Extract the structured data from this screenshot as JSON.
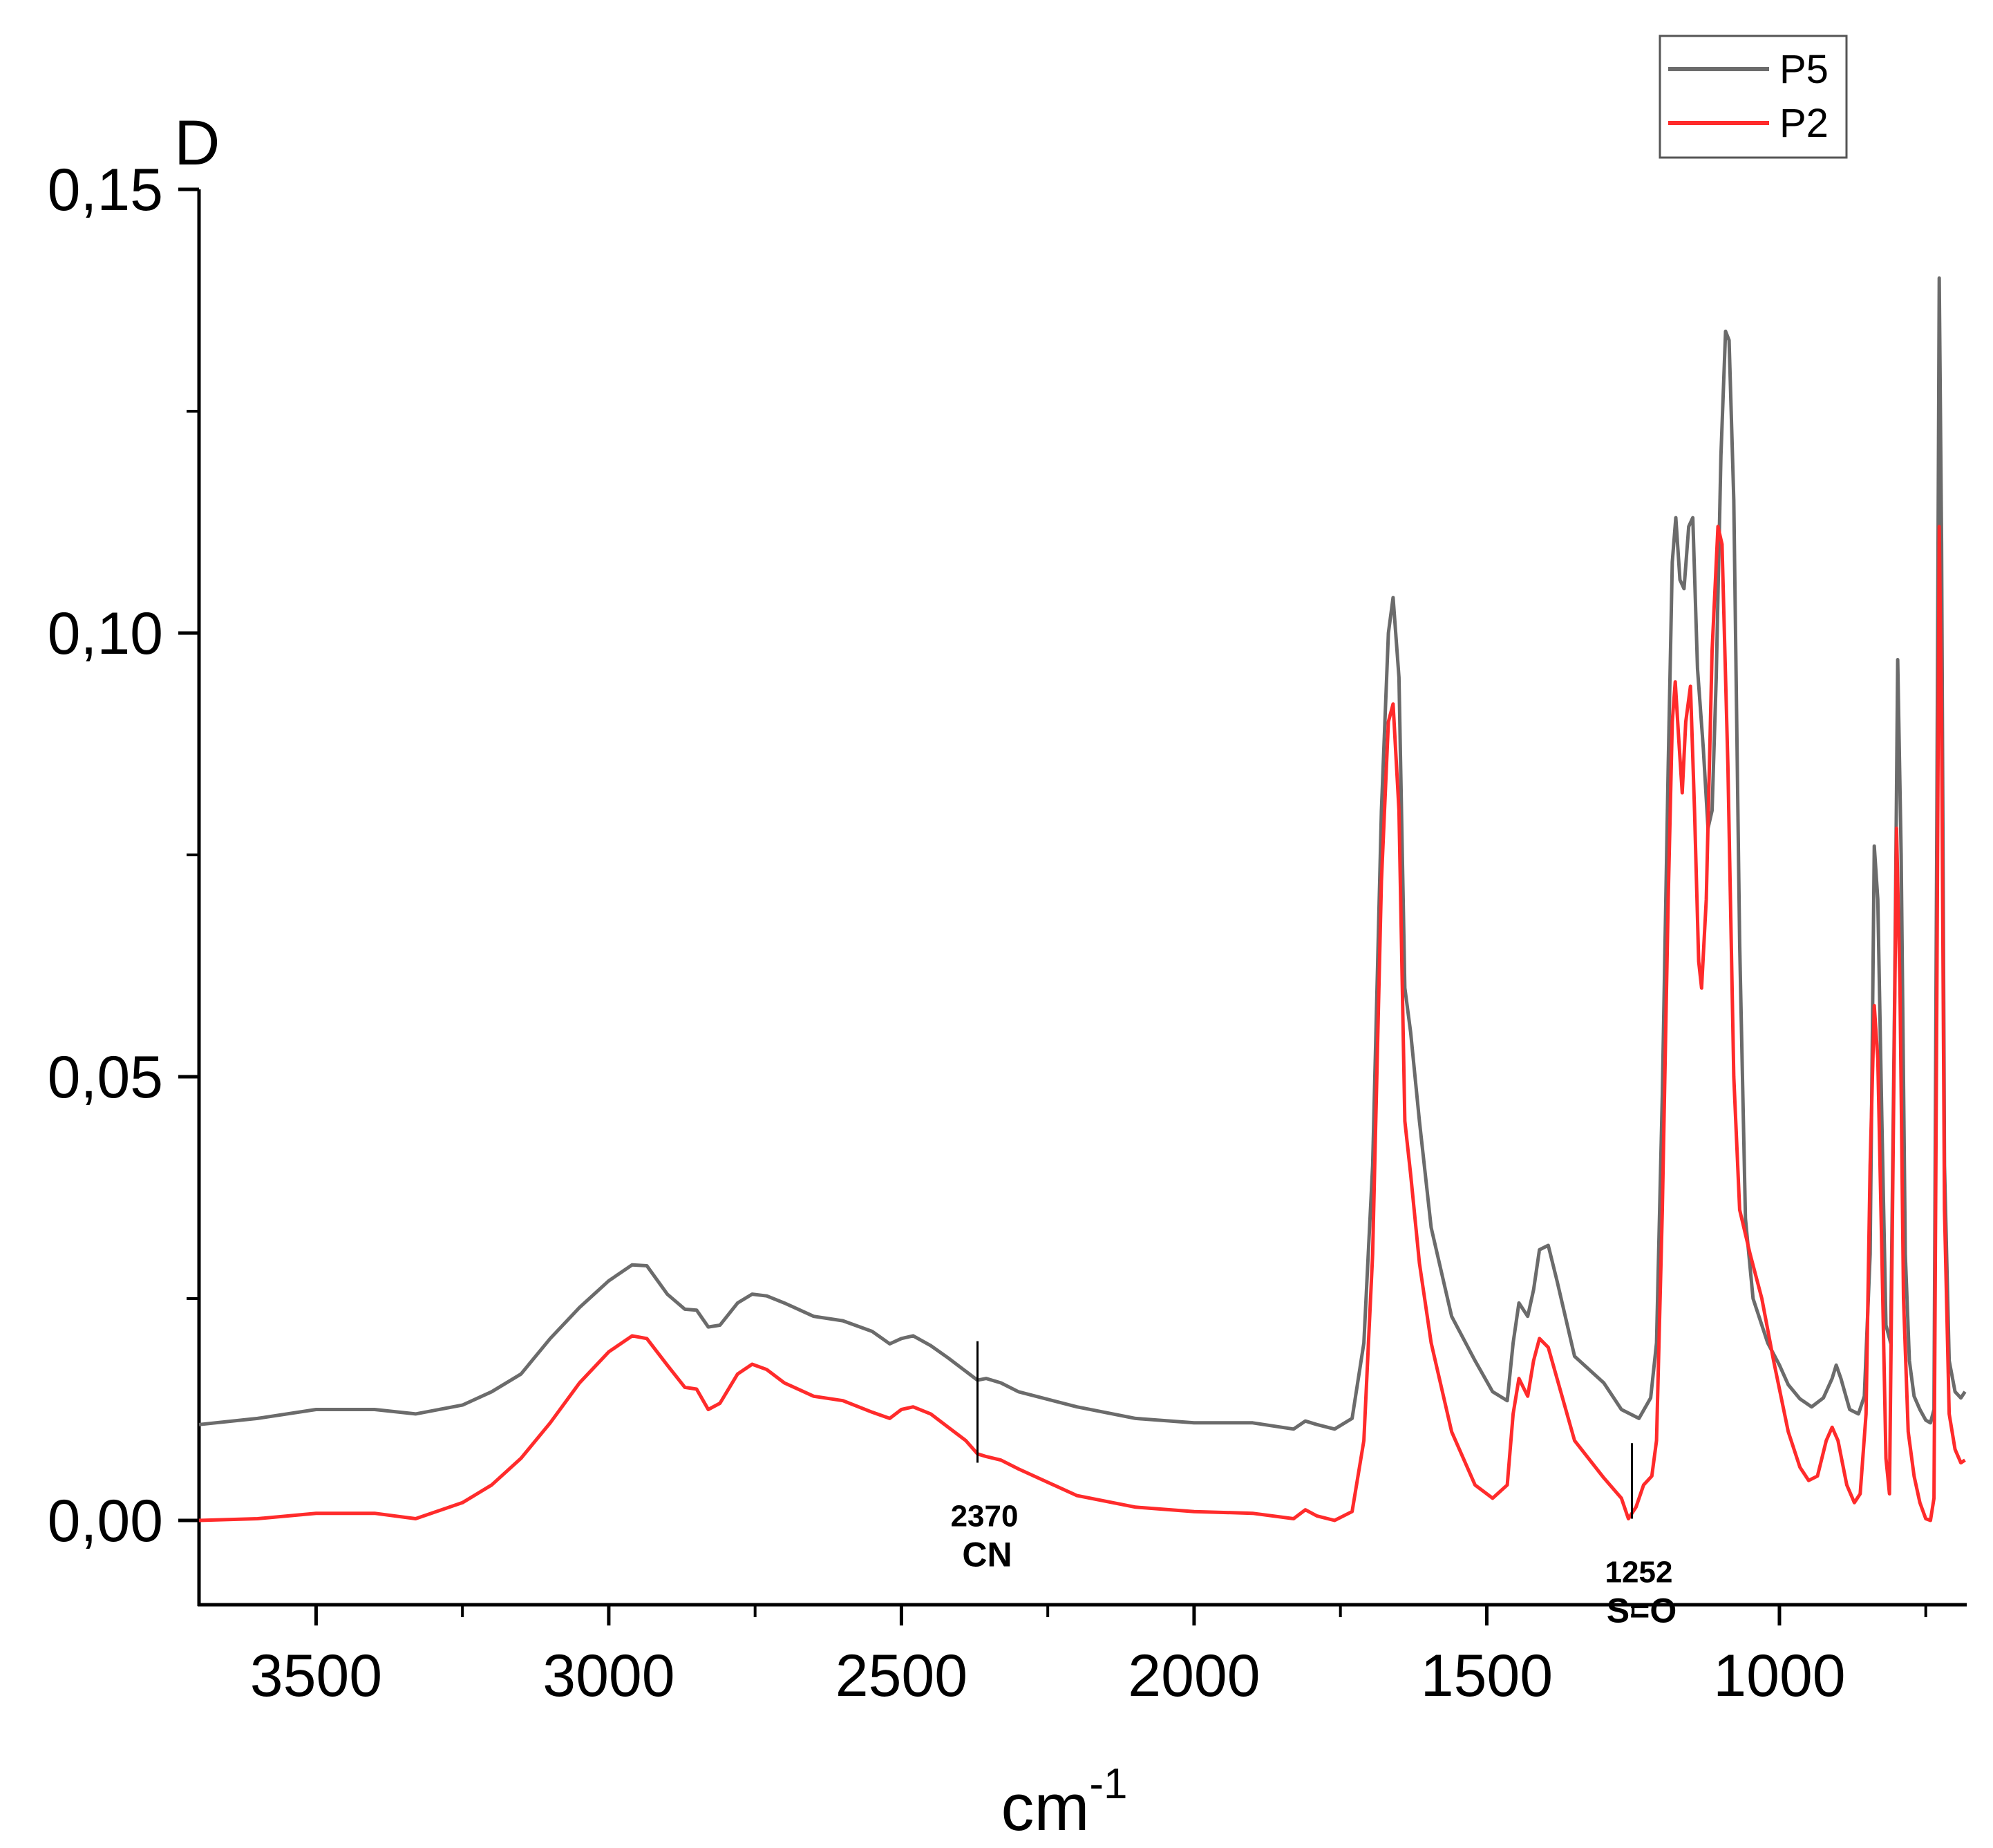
{
  "chart_data": {
    "type": "line",
    "panel_label": "D",
    "xlabel": "cm",
    "xlabel_sup": "-1",
    "ylabel": "",
    "x_reversed": true,
    "xlim": [
      3700,
      680
    ],
    "ylim": [
      -0.0095,
      0.15
    ],
    "x_ticks": [
      {
        "v": 3500,
        "label": "3500"
      },
      {
        "v": 3000,
        "label": "3000"
      },
      {
        "v": 2500,
        "label": "2500"
      },
      {
        "v": 2000,
        "label": "2000"
      },
      {
        "v": 1500,
        "label": "1500"
      },
      {
        "v": 1000,
        "label": "1000"
      }
    ],
    "x_minor_ticks": [
      3250,
      2750,
      2250,
      1750,
      1250,
      750
    ],
    "y_ticks": [
      {
        "v": 0.0,
        "label": "0,00"
      },
      {
        "v": 0.05,
        "label": "0,05"
      },
      {
        "v": 0.1,
        "label": "0,10"
      },
      {
        "v": 0.15,
        "label": "0,15"
      }
    ],
    "y_minor_ticks": [
      0.025,
      0.075,
      0.125
    ],
    "grid": false,
    "legend": {
      "position": "top-right"
    },
    "series": [
      {
        "name": "P5",
        "color": "#6b6b6b",
        "points": [
          [
            3700,
            0.0108
          ],
          [
            3600,
            0.0115
          ],
          [
            3500,
            0.0125
          ],
          [
            3400,
            0.0125
          ],
          [
            3330,
            0.012
          ],
          [
            3250,
            0.013
          ],
          [
            3200,
            0.0145
          ],
          [
            3150,
            0.0165
          ],
          [
            3100,
            0.0205
          ],
          [
            3050,
            0.024
          ],
          [
            3000,
            0.027
          ],
          [
            2960,
            0.0288
          ],
          [
            2935,
            0.0287
          ],
          [
            2900,
            0.0255
          ],
          [
            2870,
            0.0238
          ],
          [
            2850,
            0.0237
          ],
          [
            2830,
            0.0218
          ],
          [
            2810,
            0.022
          ],
          [
            2780,
            0.0245
          ],
          [
            2755,
            0.0255
          ],
          [
            2730,
            0.0253
          ],
          [
            2700,
            0.0245
          ],
          [
            2650,
            0.023
          ],
          [
            2600,
            0.0225
          ],
          [
            2550,
            0.0213
          ],
          [
            2520,
            0.0199
          ],
          [
            2500,
            0.0205
          ],
          [
            2480,
            0.0208
          ],
          [
            2450,
            0.0197
          ],
          [
            2420,
            0.0183
          ],
          [
            2390,
            0.0168
          ],
          [
            2370,
            0.0158
          ],
          [
            2355,
            0.016
          ],
          [
            2330,
            0.0155
          ],
          [
            2300,
            0.0145
          ],
          [
            2200,
            0.0128
          ],
          [
            2100,
            0.0115
          ],
          [
            2000,
            0.011
          ],
          [
            1900,
            0.011
          ],
          [
            1830,
            0.0103
          ],
          [
            1810,
            0.0112
          ],
          [
            1790,
            0.0108
          ],
          [
            1760,
            0.0103
          ],
          [
            1730,
            0.0115
          ],
          [
            1710,
            0.02
          ],
          [
            1695,
            0.04
          ],
          [
            1680,
            0.08
          ],
          [
            1668,
            0.1
          ],
          [
            1660,
            0.104
          ],
          [
            1650,
            0.095
          ],
          [
            1640,
            0.06
          ],
          [
            1630,
            0.055
          ],
          [
            1615,
            0.045
          ],
          [
            1595,
            0.033
          ],
          [
            1560,
            0.023
          ],
          [
            1520,
            0.018
          ],
          [
            1490,
            0.0145
          ],
          [
            1465,
            0.0135
          ],
          [
            1455,
            0.02
          ],
          [
            1445,
            0.0245
          ],
          [
            1430,
            0.023
          ],
          [
            1420,
            0.026
          ],
          [
            1410,
            0.0305
          ],
          [
            1395,
            0.031
          ],
          [
            1380,
            0.027
          ],
          [
            1350,
            0.0185
          ],
          [
            1300,
            0.0155
          ],
          [
            1270,
            0.0125
          ],
          [
            1240,
            0.0115
          ],
          [
            1220,
            0.0138
          ],
          [
            1210,
            0.02
          ],
          [
            1200,
            0.048
          ],
          [
            1190,
            0.085
          ],
          [
            1183,
            0.108
          ],
          [
            1177,
            0.113
          ],
          [
            1170,
            0.106
          ],
          [
            1163,
            0.105
          ],
          [
            1155,
            0.112
          ],
          [
            1148,
            0.113
          ],
          [
            1140,
            0.096
          ],
          [
            1130,
            0.087
          ],
          [
            1122,
            0.078
          ],
          [
            1115,
            0.08
          ],
          [
            1108,
            0.095
          ],
          [
            1100,
            0.12
          ],
          [
            1092,
            0.134
          ],
          [
            1086,
            0.133
          ],
          [
            1078,
            0.115
          ],
          [
            1068,
            0.065
          ],
          [
            1058,
            0.034
          ],
          [
            1045,
            0.025
          ],
          [
            1020,
            0.02
          ],
          [
            1000,
            0.0175
          ],
          [
            985,
            0.0153
          ],
          [
            965,
            0.0137
          ],
          [
            945,
            0.0128
          ],
          [
            925,
            0.0138
          ],
          [
            910,
            0.016
          ],
          [
            903,
            0.0175
          ],
          [
            895,
            0.016
          ],
          [
            880,
            0.0125
          ],
          [
            865,
            0.012
          ],
          [
            855,
            0.014
          ],
          [
            845,
            0.03
          ],
          [
            838,
            0.076
          ],
          [
            832,
            0.07
          ],
          [
            825,
            0.045
          ],
          [
            818,
            0.022
          ],
          [
            810,
            0.02
          ],
          [
            803,
            0.06
          ],
          [
            798,
            0.097
          ],
          [
            792,
            0.075
          ],
          [
            785,
            0.03
          ],
          [
            778,
            0.018
          ],
          [
            770,
            0.014
          ],
          [
            760,
            0.0125
          ],
          [
            750,
            0.0113
          ],
          [
            742,
            0.011
          ],
          [
            736,
            0.0125
          ],
          [
            731,
            0.08
          ],
          [
            727,
            0.14
          ],
          [
            723,
            0.11
          ],
          [
            718,
            0.04
          ],
          [
            710,
            0.018
          ],
          [
            700,
            0.0145
          ],
          [
            690,
            0.0138
          ],
          [
            683,
            0.0145
          ]
        ]
      },
      {
        "name": "P2",
        "color": "#ff2b2b",
        "points": [
          [
            3700,
            0.0
          ],
          [
            3600,
            0.0002
          ],
          [
            3500,
            0.0008
          ],
          [
            3400,
            0.0008
          ],
          [
            3330,
            0.0002
          ],
          [
            3250,
            0.002
          ],
          [
            3200,
            0.004
          ],
          [
            3150,
            0.007
          ],
          [
            3100,
            0.011
          ],
          [
            3050,
            0.0155
          ],
          [
            3000,
            0.019
          ],
          [
            2960,
            0.0208
          ],
          [
            2935,
            0.0205
          ],
          [
            2900,
            0.0175
          ],
          [
            2870,
            0.015
          ],
          [
            2850,
            0.0148
          ],
          [
            2830,
            0.0125
          ],
          [
            2810,
            0.0132
          ],
          [
            2780,
            0.0165
          ],
          [
            2755,
            0.0176
          ],
          [
            2730,
            0.017
          ],
          [
            2700,
            0.0155
          ],
          [
            2650,
            0.014
          ],
          [
            2600,
            0.0135
          ],
          [
            2550,
            0.0122
          ],
          [
            2520,
            0.0115
          ],
          [
            2500,
            0.0125
          ],
          [
            2480,
            0.0128
          ],
          [
            2450,
            0.012
          ],
          [
            2420,
            0.0105
          ],
          [
            2390,
            0.009
          ],
          [
            2370,
            0.0075
          ],
          [
            2355,
            0.0072
          ],
          [
            2330,
            0.0068
          ],
          [
            2300,
            0.0058
          ],
          [
            2200,
            0.0028
          ],
          [
            2100,
            0.0015
          ],
          [
            2000,
            0.001
          ],
          [
            1900,
            0.0008
          ],
          [
            1830,
            0.0002
          ],
          [
            1810,
            0.0012
          ],
          [
            1790,
            0.0005
          ],
          [
            1760,
            0.0
          ],
          [
            1730,
            0.001
          ],
          [
            1710,
            0.009
          ],
          [
            1695,
            0.03
          ],
          [
            1680,
            0.072
          ],
          [
            1668,
            0.09
          ],
          [
            1660,
            0.092
          ],
          [
            1650,
            0.08
          ],
          [
            1640,
            0.045
          ],
          [
            1630,
            0.039
          ],
          [
            1615,
            0.029
          ],
          [
            1595,
            0.02
          ],
          [
            1560,
            0.01
          ],
          [
            1520,
            0.004
          ],
          [
            1490,
            0.0025
          ],
          [
            1465,
            0.004
          ],
          [
            1455,
            0.012
          ],
          [
            1445,
            0.016
          ],
          [
            1430,
            0.014
          ],
          [
            1420,
            0.018
          ],
          [
            1410,
            0.0205
          ],
          [
            1395,
            0.0195
          ],
          [
            1380,
            0.016
          ],
          [
            1350,
            0.009
          ],
          [
            1300,
            0.0048
          ],
          [
            1270,
            0.0025
          ],
          [
            1258,
            0.0002
          ],
          [
            1245,
            0.0015
          ],
          [
            1232,
            0.004
          ],
          [
            1218,
            0.005
          ],
          [
            1210,
            0.009
          ],
          [
            1200,
            0.035
          ],
          [
            1190,
            0.07
          ],
          [
            1183,
            0.09
          ],
          [
            1178,
            0.0945
          ],
          [
            1172,
            0.088
          ],
          [
            1166,
            0.082
          ],
          [
            1160,
            0.09
          ],
          [
            1152,
            0.094
          ],
          [
            1145,
            0.08
          ],
          [
            1138,
            0.063
          ],
          [
            1133,
            0.06
          ],
          [
            1125,
            0.07
          ],
          [
            1115,
            0.098
          ],
          [
            1105,
            0.112
          ],
          [
            1098,
            0.11
          ],
          [
            1088,
            0.085
          ],
          [
            1078,
            0.05
          ],
          [
            1068,
            0.035
          ],
          [
            1050,
            0.03
          ],
          [
            1030,
            0.025
          ],
          [
            1010,
            0.018
          ],
          [
            985,
            0.01
          ],
          [
            965,
            0.006
          ],
          [
            950,
            0.0045
          ],
          [
            935,
            0.005
          ],
          [
            920,
            0.009
          ],
          [
            910,
            0.0105
          ],
          [
            900,
            0.009
          ],
          [
            885,
            0.004
          ],
          [
            872,
            0.002
          ],
          [
            862,
            0.003
          ],
          [
            852,
            0.012
          ],
          [
            845,
            0.04
          ],
          [
            838,
            0.058
          ],
          [
            832,
            0.052
          ],
          [
            825,
            0.03
          ],
          [
            818,
            0.007
          ],
          [
            812,
            0.003
          ],
          [
            806,
            0.04
          ],
          [
            800,
            0.078
          ],
          [
            794,
            0.06
          ],
          [
            788,
            0.025
          ],
          [
            780,
            0.01
          ],
          [
            770,
            0.005
          ],
          [
            760,
            0.002
          ],
          [
            750,
            0.0002
          ],
          [
            742,
            0.0
          ],
          [
            736,
            0.0025
          ],
          [
            731,
            0.06
          ],
          [
            727,
            0.112
          ],
          [
            723,
            0.09
          ],
          [
            718,
            0.035
          ],
          [
            710,
            0.012
          ],
          [
            700,
            0.008
          ],
          [
            690,
            0.0065
          ],
          [
            683,
            0.0068
          ]
        ]
      }
    ],
    "annotations": [
      {
        "x": 2370,
        "y_top": 0.0202,
        "y_bottom": 0.0065,
        "value_label": "2370",
        "name_label": "CN"
      },
      {
        "x": 1252,
        "y_top": 0.0087,
        "y_bottom": 0.0002,
        "value_label": "1252",
        "name_label": "S=O"
      }
    ]
  }
}
